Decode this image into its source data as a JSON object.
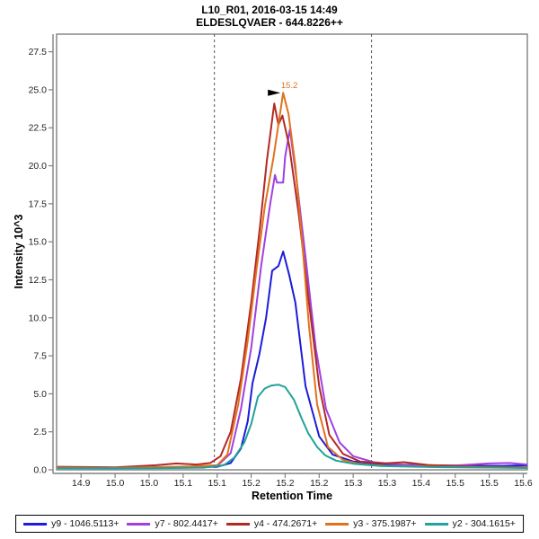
{
  "header": {
    "line1": "L10_R01, 2016-03-15 14:49",
    "line2": "ELDESLQVAER - 644.8226++"
  },
  "chart_data": {
    "type": "line",
    "title": "L10_R01, 2016-03-15 14:49",
    "subtitle": "ELDESLQVAER - 644.8226++",
    "xlabel": "Retention Time",
    "ylabel": "Intensity 10^3",
    "xlim": [
      14.864,
      15.556
    ],
    "ylim": [
      0,
      28.66
    ],
    "grid": false,
    "legend_position": "bottom",
    "frame_color": "#808080",
    "tick_text_color": "#222222",
    "x_ticks": {
      "start": 14.9,
      "step": 0.05,
      "labels": [
        "14.9",
        "15.0",
        "15.0",
        "15.1",
        "15.1",
        "15.2",
        "15.2",
        "15.2",
        "15.3",
        "15.3",
        "15.4",
        "15.5",
        "15.5",
        "15.6"
      ]
    },
    "y_ticks": {
      "start": 0,
      "step": 2.5,
      "labels": [
        "0.0",
        "2.5",
        "5.0",
        "7.5",
        "10.0",
        "12.5",
        "15.0",
        "17.5",
        "20.0",
        "22.5",
        "25.0",
        "27.5"
      ]
    },
    "peak_boundaries": [
      15.096,
      15.327
    ],
    "peak_boundary_style": "dashed",
    "peak_boundary_color": "#555555",
    "annotation": {
      "label": "15.2",
      "rt": 15.197,
      "intensity": 24.8,
      "color": "#E2711D",
      "arrow_color": "#000000"
    },
    "series": [
      {
        "id": "y9",
        "label": "y9 - 1046.5113+",
        "color": "#1C1CD9",
        "points": [
          [
            14.865,
            0.18
          ],
          [
            14.93,
            0.15
          ],
          [
            15.0,
            0.16
          ],
          [
            15.05,
            0.18
          ],
          [
            15.1,
            0.2
          ],
          [
            15.12,
            0.45
          ],
          [
            15.135,
            1.4
          ],
          [
            15.145,
            3.2
          ],
          [
            15.152,
            5.7
          ],
          [
            15.162,
            7.6
          ],
          [
            15.172,
            10.0
          ],
          [
            15.181,
            13.1
          ],
          [
            15.19,
            13.4
          ],
          [
            15.197,
            14.36
          ],
          [
            15.206,
            12.8
          ],
          [
            15.215,
            11.0
          ],
          [
            15.23,
            5.5
          ],
          [
            15.25,
            2.2
          ],
          [
            15.27,
            1.0
          ],
          [
            15.3,
            0.55
          ],
          [
            15.34,
            0.38
          ],
          [
            15.4,
            0.3
          ],
          [
            15.46,
            0.28
          ],
          [
            15.52,
            0.26
          ],
          [
            15.556,
            0.3
          ]
        ]
      },
      {
        "id": "y7",
        "label": "y7 - 802.4417+",
        "color": "#A040E0",
        "points": [
          [
            14.865,
            0.12
          ],
          [
            14.95,
            0.1
          ],
          [
            15.05,
            0.14
          ],
          [
            15.1,
            0.25
          ],
          [
            15.12,
            1.1
          ],
          [
            15.135,
            4.0
          ],
          [
            15.15,
            8.0
          ],
          [
            15.165,
            13.5
          ],
          [
            15.178,
            17.5
          ],
          [
            15.185,
            19.4
          ],
          [
            15.188,
            18.9
          ],
          [
            15.197,
            18.9
          ],
          [
            15.2,
            20.6
          ],
          [
            15.207,
            22.4
          ],
          [
            15.217,
            19.0
          ],
          [
            15.23,
            14.0
          ],
          [
            15.245,
            8.0
          ],
          [
            15.26,
            4.0
          ],
          [
            15.28,
            1.8
          ],
          [
            15.3,
            0.9
          ],
          [
            15.33,
            0.5
          ],
          [
            15.38,
            0.3
          ],
          [
            15.44,
            0.26
          ],
          [
            15.5,
            0.42
          ],
          [
            15.53,
            0.45
          ],
          [
            15.556,
            0.35
          ]
        ]
      },
      {
        "id": "y4",
        "label": "y4 - 474.2671+",
        "color": "#B12A25",
        "points": [
          [
            14.865,
            0.2
          ],
          [
            14.95,
            0.16
          ],
          [
            15.01,
            0.3
          ],
          [
            15.04,
            0.42
          ],
          [
            15.07,
            0.35
          ],
          [
            15.09,
            0.45
          ],
          [
            15.105,
            0.9
          ],
          [
            15.12,
            2.5
          ],
          [
            15.135,
            6.0
          ],
          [
            15.15,
            11.0
          ],
          [
            15.163,
            16.0
          ],
          [
            15.173,
            20.3
          ],
          [
            15.184,
            24.1
          ],
          [
            15.19,
            22.7
          ],
          [
            15.196,
            23.3
          ],
          [
            15.206,
            21.3
          ],
          [
            15.22,
            16.8
          ],
          [
            15.235,
            11.0
          ],
          [
            15.25,
            5.5
          ],
          [
            15.265,
            2.3
          ],
          [
            15.285,
            1.05
          ],
          [
            15.31,
            0.55
          ],
          [
            15.345,
            0.42
          ],
          [
            15.375,
            0.5
          ],
          [
            15.41,
            0.32
          ],
          [
            15.47,
            0.22
          ],
          [
            15.556,
            0.16
          ]
        ]
      },
      {
        "id": "y3",
        "label": "y3 - 375.1987+",
        "color": "#E2711D",
        "points": [
          [
            14.865,
            0.15
          ],
          [
            14.94,
            0.12
          ],
          [
            15.0,
            0.17
          ],
          [
            15.06,
            0.22
          ],
          [
            15.1,
            0.3
          ],
          [
            15.115,
            1.0
          ],
          [
            15.131,
            4.3
          ],
          [
            15.145,
            8.5
          ],
          [
            15.158,
            13.2
          ],
          [
            15.17,
            17.3
          ],
          [
            15.183,
            20.6
          ],
          [
            15.197,
            24.8
          ],
          [
            15.205,
            23.4
          ],
          [
            15.215,
            20.0
          ],
          [
            15.225,
            15.0
          ],
          [
            15.235,
            9.5
          ],
          [
            15.247,
            4.3
          ],
          [
            15.263,
            1.5
          ],
          [
            15.285,
            0.65
          ],
          [
            15.31,
            0.38
          ],
          [
            15.35,
            0.26
          ],
          [
            15.42,
            0.2
          ],
          [
            15.5,
            0.16
          ],
          [
            15.556,
            0.13
          ]
        ]
      },
      {
        "id": "y2",
        "label": "y2 - 304.1615+",
        "color": "#20A39A",
        "points": [
          [
            14.865,
            0.1
          ],
          [
            15.0,
            0.1
          ],
          [
            15.08,
            0.14
          ],
          [
            15.11,
            0.3
          ],
          [
            15.125,
            0.8
          ],
          [
            15.14,
            1.8
          ],
          [
            15.15,
            3.0
          ],
          [
            15.16,
            4.8
          ],
          [
            15.17,
            5.35
          ],
          [
            15.18,
            5.55
          ],
          [
            15.19,
            5.6
          ],
          [
            15.2,
            5.45
          ],
          [
            15.213,
            4.6
          ],
          [
            15.225,
            3.3
          ],
          [
            15.234,
            2.4
          ],
          [
            15.247,
            1.5
          ],
          [
            15.259,
            0.95
          ],
          [
            15.275,
            0.6
          ],
          [
            15.3,
            0.4
          ],
          [
            15.34,
            0.25
          ],
          [
            15.42,
            0.18
          ],
          [
            15.5,
            0.15
          ],
          [
            15.556,
            0.12
          ]
        ]
      }
    ]
  }
}
